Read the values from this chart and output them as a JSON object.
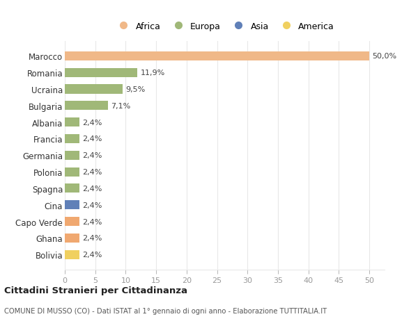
{
  "categories": [
    "Bolivia",
    "Ghana",
    "Capo Verde",
    "Cina",
    "Spagna",
    "Polonia",
    "Germania",
    "Francia",
    "Albania",
    "Bulgaria",
    "Ucraina",
    "Romania",
    "Marocco"
  ],
  "values": [
    2.4,
    2.4,
    2.4,
    2.4,
    2.4,
    2.4,
    2.4,
    2.4,
    2.4,
    7.1,
    9.5,
    11.9,
    50.0
  ],
  "colors": [
    "#f0d060",
    "#f0a870",
    "#f0a870",
    "#6080b8",
    "#a0b878",
    "#a0b878",
    "#a0b878",
    "#a0b878",
    "#a0b878",
    "#a0b878",
    "#a0b878",
    "#a0b878",
    "#f0b888"
  ],
  "labels": [
    "2,4%",
    "2,4%",
    "2,4%",
    "2,4%",
    "2,4%",
    "2,4%",
    "2,4%",
    "2,4%",
    "2,4%",
    "7,1%",
    "9,5%",
    "11,9%",
    "50,0%"
  ],
  "legend_items": [
    {
      "label": "Africa",
      "color": "#f0b888"
    },
    {
      "label": "Europa",
      "color": "#a0b878"
    },
    {
      "label": "Asia",
      "color": "#6080b8"
    },
    {
      "label": "America",
      "color": "#f0d060"
    }
  ],
  "title": "Cittadini Stranieri per Cittadinanza",
  "subtitle": "COMUNE DI MUSSO (CO) - Dati ISTAT al 1° gennaio di ogni anno - Elaborazione TUTTITALIA.IT",
  "xlim": [
    0,
    52.5
  ],
  "xticks": [
    0,
    5,
    10,
    15,
    20,
    25,
    30,
    35,
    40,
    45,
    50
  ],
  "bg_color": "#ffffff",
  "grid_color": "#e8e8e8"
}
